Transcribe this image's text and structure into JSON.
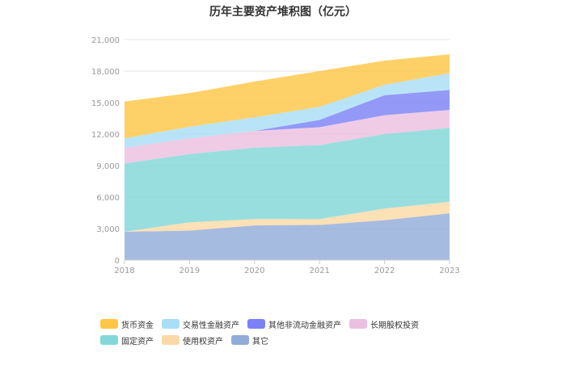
{
  "chart_data": {
    "type": "area",
    "stacked": true,
    "title": "历年主要资产堆积图（亿元）",
    "x": [
      "2018",
      "2019",
      "2020",
      "2021",
      "2022",
      "2023"
    ],
    "ylim": [
      0,
      21000
    ],
    "yticks": [
      "0",
      "3,000",
      "6,000",
      "9,000",
      "12,000",
      "15,000",
      "18,000",
      "21,000"
    ],
    "ytick_values": [
      0,
      3000,
      6000,
      9000,
      12000,
      15000,
      18000,
      21000
    ],
    "grid": true,
    "legend_position": "bottom-left",
    "series": [
      {
        "name": "其它",
        "color": "#92acd9",
        "values": [
          2700,
          2800,
          3300,
          3350,
          3800,
          4450
        ]
      },
      {
        "name": "使用权资产",
        "color": "#fbd9a6",
        "values": [
          0,
          800,
          600,
          550,
          1100,
          1100
        ]
      },
      {
        "name": "固定资产",
        "color": "#83d7d8",
        "values": [
          6500,
          6500,
          6800,
          7050,
          7100,
          7050
        ]
      },
      {
        "name": "长期股权投资",
        "color": "#ebbfe0",
        "values": [
          1500,
          1500,
          1600,
          1700,
          1800,
          1700
        ]
      },
      {
        "name": "其他非流动金融资产",
        "color": "#7c82f5",
        "values": [
          0,
          0,
          0,
          700,
          1900,
          1900
        ]
      },
      {
        "name": "交易性金融资产",
        "color": "#a9def7",
        "values": [
          900,
          1100,
          1300,
          1250,
          1000,
          1600
        ]
      },
      {
        "name": "货币资金",
        "color": "#fdc745",
        "values": [
          3500,
          3200,
          3400,
          3400,
          2300,
          1800
        ]
      }
    ],
    "legend": [
      {
        "name": "货币资金",
        "color": "#fdc745"
      },
      {
        "name": "交易性金融资产",
        "color": "#a9def7"
      },
      {
        "name": "其他非流动金融资产",
        "color": "#7c82f5"
      },
      {
        "name": "长期股权投资",
        "color": "#ebbfe0"
      },
      {
        "name": "固定资产",
        "color": "#83d7d8"
      },
      {
        "name": "使用权资产",
        "color": "#fbd9a6"
      },
      {
        "name": "其它",
        "color": "#92acd9"
      }
    ]
  }
}
